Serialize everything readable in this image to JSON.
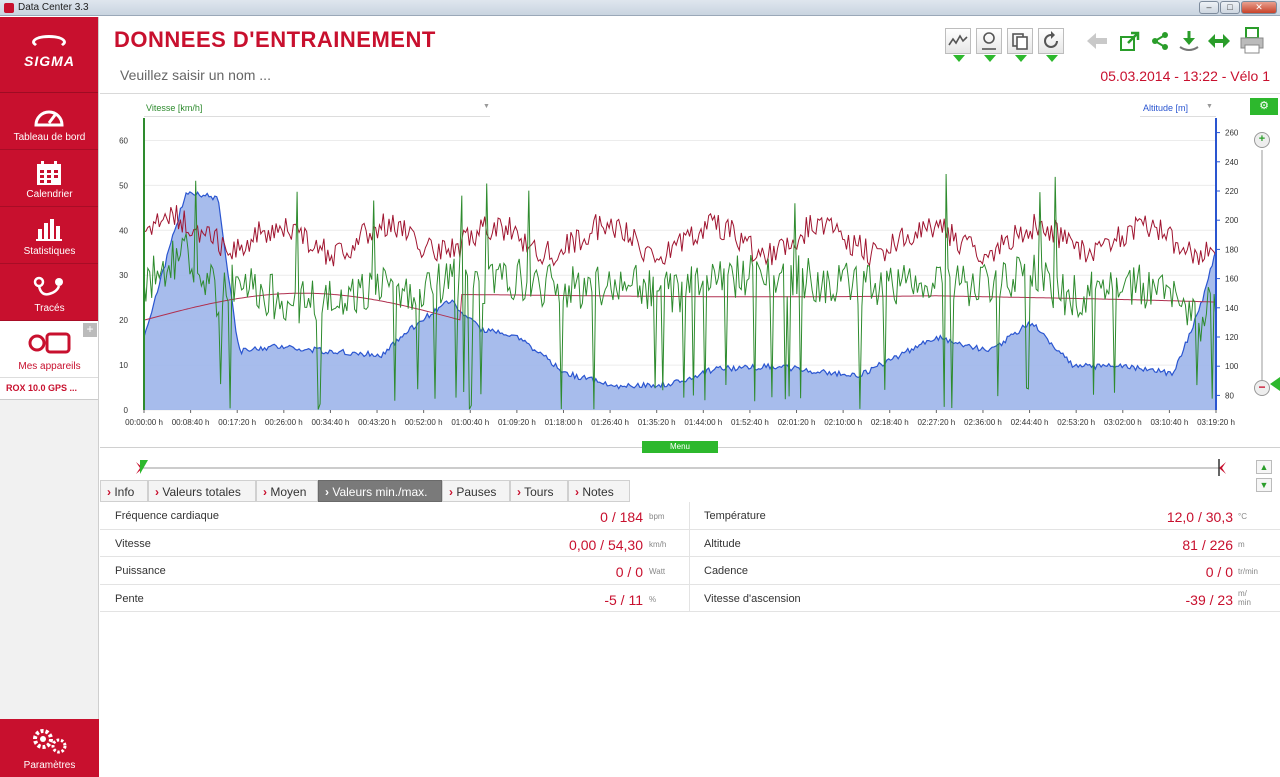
{
  "window": {
    "title": "Data Center 3.3"
  },
  "sidebar": {
    "brand": "SIGMA",
    "items": [
      {
        "label": "Tableau de bord",
        "icon": "speedometer-icon"
      },
      {
        "label": "Calendrier",
        "icon": "calendar-icon"
      },
      {
        "label": "Statistiques",
        "icon": "bar-chart-icon"
      },
      {
        "label": "Tracés",
        "icon": "route-icon"
      }
    ],
    "devices": {
      "label": "Mes appareils",
      "add": "+"
    },
    "device_name": "ROX 10.0 GPS ...",
    "settings": "Paramètres"
  },
  "header": {
    "title": "DONNEES D'ENTRAINEMENT",
    "name_placeholder": "Veuillez saisir un nom ...",
    "date_info": "05.03.2014 - 13:22 - Vélo 1"
  },
  "toolbar": {
    "icons": [
      "line-chart-icon",
      "map-icon",
      "copy-icon",
      "refresh-icon",
      "back-arrow-icon",
      "export-icon",
      "share-icon",
      "download-icon",
      "expand-horizontal-icon",
      "print-icon"
    ]
  },
  "chart": {
    "left_axis_label": "Vitesse [km/h]",
    "right_axis_label": "Altitude [m]",
    "menu_label": "Menu",
    "colors": {
      "speed": "#2e8b2e",
      "altitude_fill": "#9db5ea",
      "altitude_line": "#2a55d0",
      "heartrate": "#a01530",
      "temperature": "#b03050"
    }
  },
  "chart_data": {
    "type": "line",
    "y_left": {
      "label": "Vitesse [km/h]",
      "ticks": [
        0,
        10,
        20,
        30,
        40,
        50,
        60
      ],
      "range": [
        0,
        65
      ]
    },
    "y_right": {
      "label": "Altitude [m]",
      "ticks": [
        80,
        100,
        120,
        140,
        160,
        180,
        200,
        220,
        240,
        260
      ],
      "range": [
        70,
        270
      ]
    },
    "x_ticks": [
      "00:00:00 h",
      "00:08:40 h",
      "00:17:20 h",
      "00:26:00 h",
      "00:34:40 h",
      "00:43:20 h",
      "00:52:00 h",
      "01:00:40 h",
      "01:09:20 h",
      "01:18:00 h",
      "01:26:40 h",
      "01:35:20 h",
      "01:44:00 h",
      "01:52:40 h",
      "02:01:20 h",
      "02:10:00 h",
      "02:18:40 h",
      "02:27:20 h",
      "02:36:00 h",
      "02:44:40 h",
      "02:53:20 h",
      "03:02:00 h",
      "03:10:40 h",
      "03:19:20 h"
    ],
    "x_minutes": [
      0,
      8,
      14,
      18,
      26,
      35,
      45,
      52,
      58,
      64,
      70,
      80,
      90,
      100,
      108,
      120,
      135,
      150,
      160,
      168,
      176,
      185,
      195,
      200,
      203
    ],
    "series": [
      {
        "name": "Altitude [m]",
        "axis": "right",
        "values": [
          120,
          220,
          215,
          110,
          114,
          110,
          108,
          130,
          145,
          125,
          122,
          95,
          86,
          88,
          98,
          100,
          93,
          120,
          110,
          130,
          100,
          100,
          95,
          140,
          180
        ]
      },
      {
        "name": "Vitesse [km/h]",
        "axis": "left",
        "values": [
          28,
          36,
          25,
          30,
          24,
          24,
          28,
          25,
          30,
          28,
          29,
          27,
          28,
          26,
          30,
          30,
          28,
          27,
          28,
          30,
          25,
          28,
          27,
          20,
          25
        ]
      }
    ]
  },
  "tabs": [
    {
      "label": "Info"
    },
    {
      "label": "Valeurs totales"
    },
    {
      "label": "Moyen"
    },
    {
      "label": "Valeurs min./max."
    },
    {
      "label": "Pauses"
    },
    {
      "label": "Tours"
    },
    {
      "label": "Notes"
    }
  ],
  "stats": {
    "left": [
      {
        "label": "Fréquence cardiaque",
        "value": "0 / 184",
        "unit": "bpm"
      },
      {
        "label": "Vitesse",
        "value": "0,00 / 54,30",
        "unit": "km/h"
      },
      {
        "label": "Puissance",
        "value": "0 / 0",
        "unit": "Watt"
      },
      {
        "label": "Pente",
        "value": "-5 / 11",
        "unit": "%"
      }
    ],
    "right": [
      {
        "label": "Température",
        "value": "12,0 / 30,3",
        "unit": "°C"
      },
      {
        "label": "Altitude",
        "value": "81 / 226",
        "unit": "m"
      },
      {
        "label": "Cadence",
        "value": "0 / 0",
        "unit": "tr/min"
      },
      {
        "label": "Vitesse d'ascension",
        "value": "-39 / 23",
        "unit": "m/\nmin"
      }
    ]
  }
}
